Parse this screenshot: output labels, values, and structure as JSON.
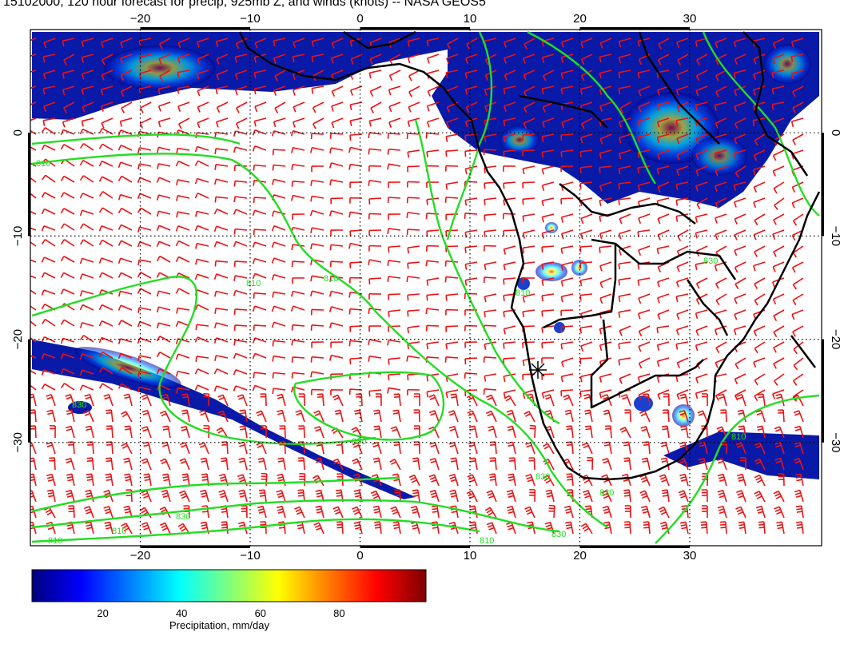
{
  "title": "15102000, 120 hour forecast for precip, 925mb Z, and winds (knots) -- NASA GEOS5",
  "map": {
    "lon_range": [
      -30,
      42
    ],
    "lat_range": [
      -40,
      10
    ],
    "x_ticks": [
      -20,
      -10,
      0,
      10,
      20,
      30
    ],
    "y_ticks": [
      0,
      -10,
      -20,
      -30
    ],
    "x_tick_labels": [
      "−20",
      "−10",
      "0",
      "10",
      "20",
      "30"
    ],
    "y_tick_labels": [
      "0",
      "−10",
      "−20",
      "−30"
    ],
    "gridlines": "dotted",
    "contour_color": "#22dd22",
    "wind_barb_color": "#ee1111",
    "coastline_color": "#000000",
    "contour_labels": [
      "810",
      "810",
      "810",
      "830",
      "830",
      "830",
      "830",
      "810",
      "810",
      "830",
      "810",
      "810",
      "830",
      "830",
      "810"
    ],
    "marker": "star"
  },
  "colorbar": {
    "label": "Precipitation, mm/day",
    "ticks": [
      "20",
      "40",
      "60",
      "80"
    ],
    "tick_values": [
      20,
      40,
      60,
      80
    ],
    "range": [
      0,
      100
    ],
    "colors": [
      "#00007f",
      "#0000ff",
      "#007fff",
      "#00ffff",
      "#7fff7f",
      "#ffff00",
      "#ff7f00",
      "#ff0000",
      "#7f0000"
    ]
  }
}
